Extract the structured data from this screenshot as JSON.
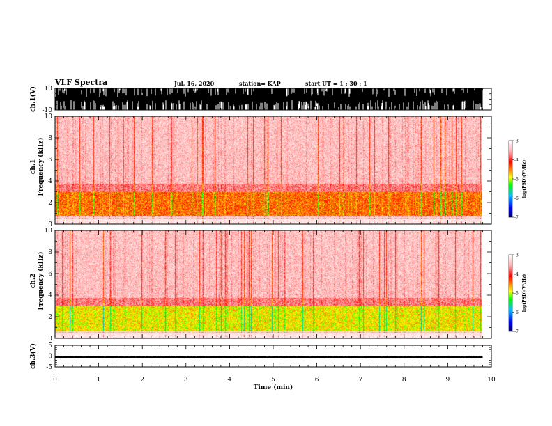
{
  "header": {
    "title": "VLF Spectra",
    "date": "Jul. 16, 2020",
    "station": "station= KAP",
    "start": "start  UT =   1 : 30 : 1"
  },
  "chart_data": [
    {
      "type": "line",
      "panel": "ch1-waveform",
      "ylabel": "ch.1(V)",
      "ylim": [
        -10,
        10
      ],
      "yticks": [
        "10",
        "-10"
      ],
      "description_values": {
        "x_range_min": [
          0,
          9.8
        ],
        "amplitude_V": "saturated, approx -10 to 10"
      }
    },
    {
      "type": "heatmap",
      "panel": "ch1-spectrogram",
      "ylabel": "ch.1\nFrequency (kHz)",
      "ylabel_line1": "ch.1",
      "ylabel_line2": "Frequency (kHz)",
      "ylim": [
        0,
        10
      ],
      "yticks": [
        "0",
        "2",
        "4",
        "6",
        "8",
        "10"
      ],
      "xlim": [
        0,
        10
      ],
      "x_data_range": [
        0,
        9.8
      ],
      "intense_band_khz": [
        0.8,
        3.0
      ],
      "colorbar": {
        "label": "log(PSD)(V²/Hz)",
        "range": [
          -7,
          -3
        ],
        "ticks": [
          "-3",
          "-4",
          "-5",
          "-6",
          "-7"
        ]
      }
    },
    {
      "type": "heatmap",
      "panel": "ch2-spectrogram",
      "ylabel_line1": "ch.2",
      "ylabel_line2": "Frequency (kHz)",
      "ylim": [
        0,
        10
      ],
      "yticks": [
        "0",
        "2",
        "4",
        "6",
        "8",
        "10"
      ],
      "xlim": [
        0,
        10
      ],
      "x_data_range": [
        0,
        9.8
      ],
      "intense_band_khz": [
        0.6,
        3.0
      ],
      "colorbar": {
        "label": "log(PSD)(V²/Hz)",
        "range": [
          -7,
          -3
        ],
        "ticks": [
          "-3",
          "-4",
          "-5",
          "-6",
          "-7"
        ]
      }
    },
    {
      "type": "line",
      "panel": "ch3-waveform",
      "ylabel": "ch.3(V)",
      "ylim": [
        -5,
        5
      ],
      "yticks": [
        "5",
        "0",
        "-5"
      ],
      "xlabel": "Time (min)",
      "xlim": [
        0,
        10
      ],
      "xticks": [
        "0",
        "1",
        "2",
        "3",
        "4",
        "5",
        "6",
        "7",
        "8",
        "9",
        "10"
      ],
      "amplitude_V": [
        -0.8,
        -0.2
      ]
    }
  ],
  "colors": {
    "colormap": [
      "#000066",
      "#0000ff",
      "#00c0ff",
      "#00ff00",
      "#ffff00",
      "#ff8000",
      "#ff0000",
      "#ffc8c8",
      "#ffffff"
    ],
    "waveform": "#000000",
    "axis": "#000000"
  }
}
